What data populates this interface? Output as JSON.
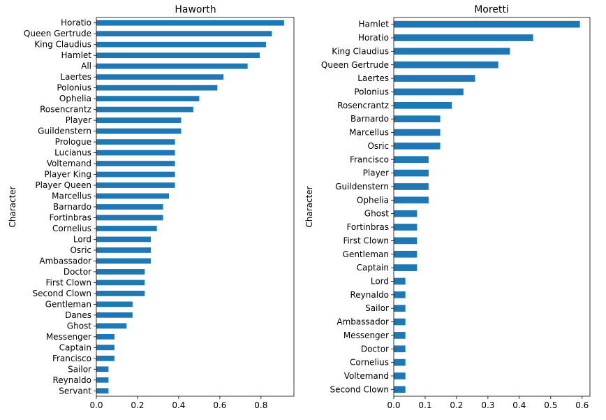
{
  "chart_data": [
    {
      "type": "bar",
      "orientation": "horizontal",
      "title": "Haworth",
      "xlabel": "",
      "ylabel": "Character",
      "xlim": [
        0,
        0.96
      ],
      "xticks": [
        "0.0",
        "0.2",
        "0.4",
        "0.6",
        "0.8"
      ],
      "xtick_values": [
        0,
        0.2,
        0.4,
        0.6,
        0.8
      ],
      "bar_color": "#1f77b4",
      "categories": [
        "Horatio",
        "Queen Gertrude",
        "King Claudius",
        "Hamlet",
        "All",
        "Laertes",
        "Polonius",
        "Ophelia",
        "Rosencrantz",
        "Player",
        "Guildenstern",
        "Prologue",
        "Lucianus",
        "Voltemand",
        "Player King",
        "Player Queen",
        "Marcellus",
        "Barnardo",
        "Fortinbras",
        "Cornelius",
        "Lord",
        "Osric",
        "Ambassador",
        "Doctor",
        "First Clown",
        "Second Clown",
        "Gentleman",
        "Danes",
        "Ghost",
        "Messenger",
        "Captain",
        "Francisco",
        "Sailor",
        "Reynaldo",
        "Servant"
      ],
      "values": [
        0.912,
        0.853,
        0.824,
        0.794,
        0.735,
        0.618,
        0.588,
        0.5,
        0.471,
        0.412,
        0.412,
        0.382,
        0.382,
        0.382,
        0.382,
        0.382,
        0.353,
        0.324,
        0.324,
        0.294,
        0.265,
        0.265,
        0.265,
        0.235,
        0.235,
        0.235,
        0.176,
        0.176,
        0.147,
        0.088,
        0.088,
        0.088,
        0.059,
        0.059,
        0.059
      ]
    },
    {
      "type": "bar",
      "orientation": "horizontal",
      "title": "Moretti",
      "xlabel": "",
      "ylabel": "Character",
      "xlim": [
        0,
        0.625
      ],
      "xticks": [
        "0.0",
        "0.1",
        "0.2",
        "0.3",
        "0.4",
        "0.5",
        "0.6"
      ],
      "xtick_values": [
        0,
        0.1,
        0.2,
        0.3,
        0.4,
        0.5,
        0.6
      ],
      "bar_color": "#1f77b4",
      "categories": [
        "Hamlet",
        "Horatio",
        "King Claudius",
        "Queen Gertrude",
        "Laertes",
        "Polonius",
        "Rosencrantz",
        "Barnardo",
        "Marcellus",
        "Osric",
        "Francisco",
        "Player",
        "Guildenstern",
        "Ophelia",
        "Ghost",
        "Fortinbras",
        "First Clown",
        "Gentleman",
        "Captain",
        "Lord",
        "Reynaldo",
        "Sailor",
        "Ambassador",
        "Messenger",
        "Doctor",
        "Cornelius",
        "Voltemand",
        "Second Clown"
      ],
      "values": [
        0.593,
        0.444,
        0.37,
        0.333,
        0.259,
        0.222,
        0.185,
        0.148,
        0.148,
        0.148,
        0.111,
        0.111,
        0.111,
        0.111,
        0.074,
        0.074,
        0.074,
        0.074,
        0.074,
        0.037,
        0.037,
        0.037,
        0.037,
        0.037,
        0.037,
        0.037,
        0.037,
        0.037
      ]
    }
  ]
}
